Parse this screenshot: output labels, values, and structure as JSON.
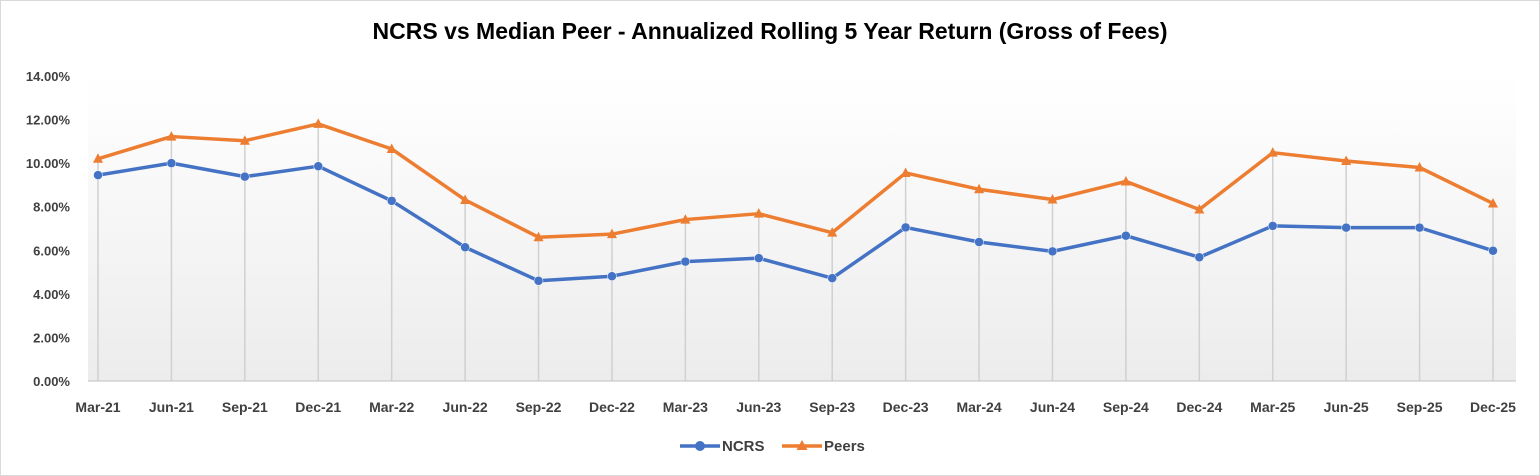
{
  "chart_data": {
    "type": "line",
    "title": "NCRS vs Median Peer - Annualized Rolling 5 Year Return (Gross of Fees)",
    "xlabel": "",
    "ylabel": "",
    "categories": [
      "Mar-21",
      "Jun-21",
      "Sep-21",
      "Dec-21",
      "Mar-22",
      "Jun-22",
      "Sep-22",
      "Dec-22",
      "Mar-23",
      "Jun-23",
      "Sep-23",
      "Dec-23",
      "Mar-24",
      "Jun-24",
      "Sep-24",
      "Dec-24",
      "Mar-25",
      "Jun-25",
      "Sep-25",
      "Dec-25"
    ],
    "ylim": [
      0,
      14
    ],
    "yticks": [
      "0.00%",
      "2.00%",
      "4.00%",
      "6.00%",
      "8.00%",
      "10.00%",
      "12.00%",
      "14.00%"
    ],
    "grid": "vertical drop lines",
    "legend_position": "bottom",
    "series": [
      {
        "name": "NCRS",
        "color": "#4472c4",
        "marker": "circle",
        "values": [
          9.45,
          10.0,
          9.38,
          9.86,
          8.27,
          6.14,
          4.6,
          4.81,
          5.48,
          5.64,
          4.72,
          7.05,
          6.38,
          5.95,
          6.67,
          5.68,
          7.12,
          7.04,
          7.04,
          5.98
        ]
      },
      {
        "name": "Peers",
        "color": "#ed7d31",
        "marker": "triangle",
        "values": [
          10.2,
          11.22,
          11.03,
          11.8,
          10.65,
          8.31,
          6.6,
          6.74,
          7.41,
          7.68,
          6.81,
          9.55,
          8.8,
          8.33,
          9.16,
          7.87,
          10.48,
          10.1,
          9.8,
          8.15
        ]
      }
    ]
  }
}
